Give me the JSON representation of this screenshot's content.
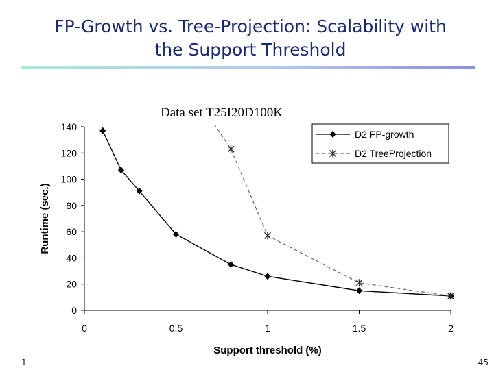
{
  "slide": {
    "title_line1": "FP-Growth vs. Tree-Projection: Scalability with",
    "title_line2": "the Support Threshold",
    "footer_left": "1",
    "page_number": "45"
  },
  "chart_data": {
    "type": "line",
    "title": "Data set T25I20D100K",
    "xlabel": "Support threshold (%)",
    "ylabel": "Runtime (sec.)",
    "xlim": [
      0,
      2
    ],
    "ylim": [
      0,
      140
    ],
    "xticks": [
      "0",
      "0.5",
      "1",
      "1.5",
      "2"
    ],
    "yticks": [
      "0",
      "20",
      "40",
      "60",
      "80",
      "100",
      "120",
      "140"
    ],
    "legend_position": "top-right",
    "series": [
      {
        "name": "D2 FP-growth",
        "style": "solid",
        "marker": "diamond",
        "color": "#000000",
        "x": [
          0.1,
          0.2,
          0.3,
          0.5,
          0.8,
          1.0,
          1.5,
          2.0
        ],
        "y": [
          137,
          107,
          91,
          58,
          35,
          26,
          15,
          11
        ]
      },
      {
        "name": "D2 TreeProjection",
        "style": "dashed",
        "marker": "asterisk",
        "color": "#555555",
        "x": [
          0.8,
          1.0,
          1.5,
          2.0
        ],
        "y": [
          123,
          57,
          21,
          11
        ],
        "entry_from": [
          0.67,
          150
        ]
      }
    ]
  }
}
